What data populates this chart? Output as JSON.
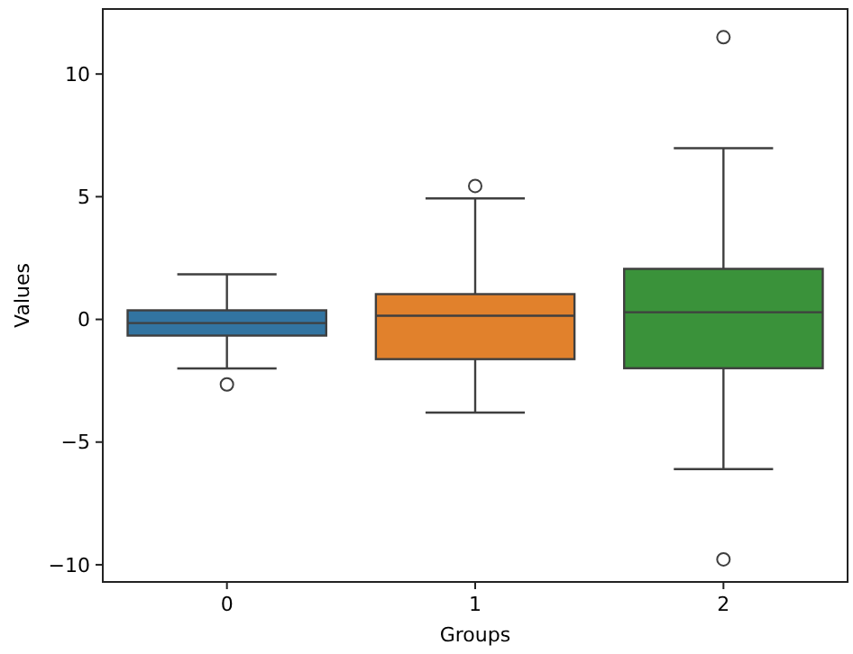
{
  "chart_data": {
    "type": "box",
    "xlabel": "Groups",
    "ylabel": "Values",
    "categories": [
      "0",
      "1",
      "2"
    ],
    "colors": [
      "#3274a1",
      "#e1812c",
      "#3a923a"
    ],
    "boxes": [
      {
        "low": -2.0,
        "q1": -0.66,
        "median": -0.15,
        "q3": 0.37,
        "high": 1.84,
        "outliers": [
          -2.65
        ]
      },
      {
        "low": -3.8,
        "q1": -1.62,
        "median": 0.15,
        "q3": 1.03,
        "high": 4.93,
        "outliers": [
          5.44
        ]
      },
      {
        "low": -6.1,
        "q1": -1.99,
        "median": 0.29,
        "q3": 2.06,
        "high": 6.98,
        "outliers": [
          11.5,
          -9.78
        ]
      }
    ],
    "ylim": [
      -10.7,
      12.65
    ],
    "yticks": [
      -10,
      -5,
      0,
      5,
      10
    ],
    "grid": false
  }
}
